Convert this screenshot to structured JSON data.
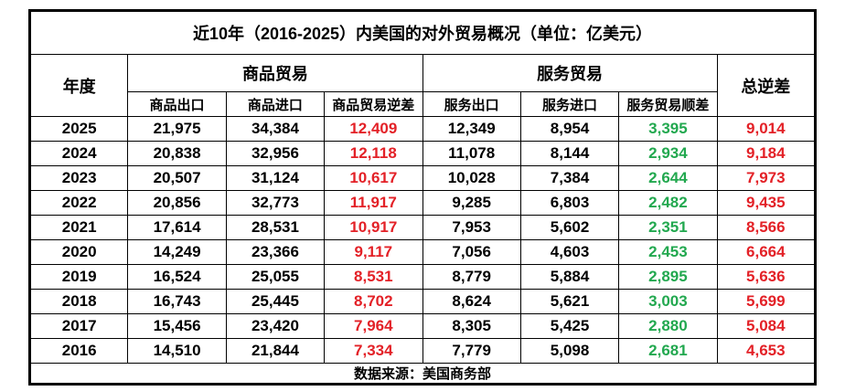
{
  "colors": {
    "background": "#ffffff",
    "border": "#000000",
    "text": "#000000",
    "deficit_red": "#e32127",
    "surplus_green": "#22a84f"
  },
  "table": {
    "title": "近10年（2016-2025）内美国的对外贸易概况（单位：亿美元）",
    "header": {
      "year": "年度",
      "goods_group": "商品贸易",
      "services_group": "服务贸易",
      "total_deficit": "总逆差",
      "goods_export": "商品出口",
      "goods_import": "商品进口",
      "goods_deficit": "商品贸易逆差",
      "services_export": "服务出口",
      "services_import": "服务进口",
      "services_surplus": "服务贸易顺差"
    },
    "footer": "数据来源：美国商务部"
  },
  "chart_data": {
    "type": "table",
    "title": "近10年（2016-2025）内美国的对外贸易概况（单位：亿美元）",
    "columns": [
      "年度",
      "商品出口",
      "商品进口",
      "商品贸易逆差",
      "服务出口",
      "服务进口",
      "服务贸易顺差",
      "总逆差"
    ],
    "rows": [
      {
        "year": "2025",
        "goods_export": "21,975",
        "goods_import": "34,384",
        "goods_deficit": "12,409",
        "services_export": "12,349",
        "services_import": "8,954",
        "services_surplus": "3,395",
        "total_deficit": "9,014"
      },
      {
        "year": "2024",
        "goods_export": "20,838",
        "goods_import": "32,956",
        "goods_deficit": "12,118",
        "services_export": "11,078",
        "services_import": "8,144",
        "services_surplus": "2,934",
        "total_deficit": "9,184"
      },
      {
        "year": "2023",
        "goods_export": "20,507",
        "goods_import": "31,124",
        "goods_deficit": "10,617",
        "services_export": "10,028",
        "services_import": "7,384",
        "services_surplus": "2,644",
        "total_deficit": "7,973"
      },
      {
        "year": "2022",
        "goods_export": "20,856",
        "goods_import": "32,773",
        "goods_deficit": "11,917",
        "services_export": "9,285",
        "services_import": "6,803",
        "services_surplus": "2,482",
        "total_deficit": "9,435"
      },
      {
        "year": "2021",
        "goods_export": "17,614",
        "goods_import": "28,531",
        "goods_deficit": "10,917",
        "services_export": "7,953",
        "services_import": "5,602",
        "services_surplus": "2,351",
        "total_deficit": "8,566"
      },
      {
        "year": "2020",
        "goods_export": "14,249",
        "goods_import": "23,366",
        "goods_deficit": "9,117",
        "services_export": "7,056",
        "services_import": "4,603",
        "services_surplus": "2,453",
        "total_deficit": "6,664"
      },
      {
        "year": "2019",
        "goods_export": "16,524",
        "goods_import": "25,055",
        "goods_deficit": "8,531",
        "services_export": "8,779",
        "services_import": "5,884",
        "services_surplus": "2,895",
        "total_deficit": "5,636"
      },
      {
        "year": "2018",
        "goods_export": "16,743",
        "goods_import": "25,445",
        "goods_deficit": "8,702",
        "services_export": "8,624",
        "services_import": "5,621",
        "services_surplus": "3,003",
        "total_deficit": "5,699"
      },
      {
        "year": "2017",
        "goods_export": "15,456",
        "goods_import": "23,420",
        "goods_deficit": "7,964",
        "services_export": "8,305",
        "services_import": "5,425",
        "services_surplus": "2,880",
        "total_deficit": "5,084"
      },
      {
        "year": "2016",
        "goods_export": "14,510",
        "goods_import": "21,844",
        "goods_deficit": "7,334",
        "services_export": "7,779",
        "services_import": "5,098",
        "services_surplus": "2,681",
        "total_deficit": "4,653"
      }
    ]
  }
}
